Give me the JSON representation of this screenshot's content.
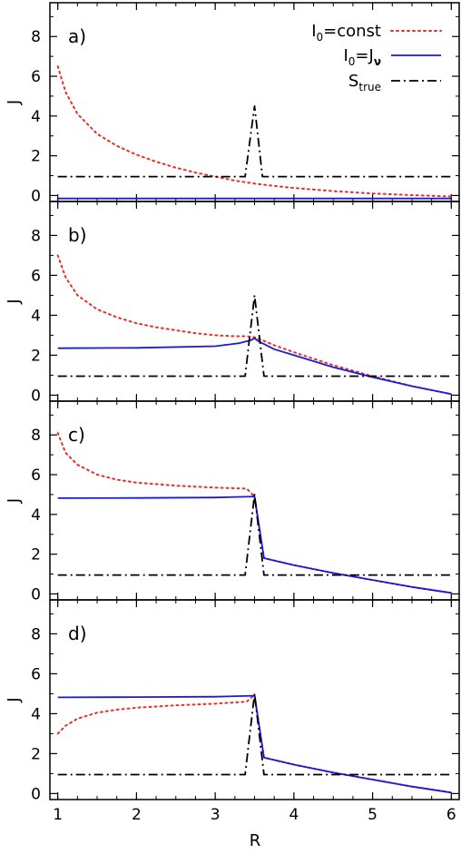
{
  "chart_data": {
    "type": "line",
    "xlabel": "R",
    "ylabel": "J",
    "xlim": [
      0.9,
      6.1
    ],
    "ylim": [
      -0.3,
      9.7
    ],
    "xticks": [
      1,
      2,
      3,
      4,
      5,
      6
    ],
    "yticks": [
      0,
      2,
      4,
      6,
      8
    ],
    "legend": {
      "placement": "top-right",
      "entries": [
        {
          "base": "I",
          "sub": "0",
          "rest": "=const",
          "color": "#e8302a",
          "dash": "dotted"
        },
        {
          "base": "I",
          "sub": "0",
          "rest": "=J",
          "greek": "ν",
          "color": "#1a1ad6",
          "dash": "solid"
        },
        {
          "base": "S",
          "sub": "true",
          "rest": "",
          "color": "#000000",
          "dash": "dashdot"
        }
      ]
    },
    "panels": [
      {
        "label": "a)",
        "series": [
          {
            "key": "I0const",
            "color": "#e8302a",
            "dash": "dotted",
            "x": [
              1.0,
              1.1,
              1.25,
              1.5,
              1.75,
              2.0,
              2.25,
              2.5,
              2.75,
              3.0,
              3.25,
              3.5,
              3.75,
              4.0,
              4.5,
              5.0,
              5.5,
              6.0
            ],
            "y": [
              6.5,
              5.2,
              4.1,
              3.1,
              2.5,
              2.05,
              1.7,
              1.4,
              1.15,
              0.95,
              0.75,
              0.6,
              0.48,
              0.38,
              0.22,
              0.1,
              0.02,
              -0.05
            ]
          },
          {
            "key": "I0Jnu",
            "color": "#1a1ad6",
            "dash": "solid",
            "x": [
              1.0,
              6.0
            ],
            "y": [
              -0.15,
              -0.15
            ]
          },
          {
            "key": "Strue",
            "color": "#000000",
            "dash": "dashdot",
            "x": [
              1.0,
              3.38,
              3.5,
              3.6,
              6.0
            ],
            "y": [
              0.95,
              0.95,
              4.5,
              0.95,
              0.95
            ]
          }
        ]
      },
      {
        "label": "b)",
        "series": [
          {
            "key": "I0const",
            "color": "#e8302a",
            "dash": "dotted",
            "x": [
              1.0,
              1.1,
              1.25,
              1.5,
              1.75,
              2.0,
              2.25,
              2.5,
              2.75,
              3.0,
              3.25,
              3.4,
              3.5,
              3.6,
              3.75,
              4.0,
              4.5,
              5.0,
              5.5,
              6.0
            ],
            "y": [
              7.0,
              5.9,
              5.0,
              4.3,
              3.9,
              3.6,
              3.4,
              3.25,
              3.1,
              3.0,
              2.95,
              2.95,
              2.9,
              2.75,
              2.5,
              2.15,
              1.5,
              0.95,
              0.45,
              0.05
            ]
          },
          {
            "key": "I0Jnu",
            "color": "#1a1ad6",
            "dash": "solid",
            "x": [
              1.0,
              2.0,
              3.0,
              3.3,
              3.45,
              3.5,
              3.55,
              3.75,
              4.0,
              4.5,
              5.0,
              5.5,
              6.0
            ],
            "y": [
              2.35,
              2.37,
              2.45,
              2.6,
              2.75,
              2.85,
              2.7,
              2.3,
              2.0,
              1.4,
              0.9,
              0.45,
              0.05
            ]
          },
          {
            "key": "Strue",
            "color": "#000000",
            "dash": "dashdot",
            "x": [
              1.0,
              3.38,
              3.5,
              3.62,
              6.0
            ],
            "y": [
              0.95,
              0.95,
              5.0,
              0.95,
              0.95
            ]
          }
        ]
      },
      {
        "label": "c)",
        "series": [
          {
            "key": "I0const",
            "color": "#e8302a",
            "dash": "dotted",
            "x": [
              1.0,
              1.1,
              1.25,
              1.5,
              1.75,
              2.0,
              2.5,
              3.0,
              3.4,
              3.5,
              3.62,
              4.0,
              4.5,
              5.0,
              5.5,
              6.0
            ],
            "y": [
              8.1,
              7.1,
              6.5,
              6.0,
              5.75,
              5.6,
              5.45,
              5.35,
              5.3,
              4.9,
              1.8,
              1.45,
              1.05,
              0.7,
              0.35,
              0.05
            ]
          },
          {
            "key": "I0Jnu",
            "color": "#1a1ad6",
            "dash": "solid",
            "x": [
              1.0,
              2.0,
              3.0,
              3.5,
              3.62,
              4.0,
              4.5,
              5.0,
              5.5,
              6.0
            ],
            "y": [
              4.82,
              4.83,
              4.85,
              4.9,
              1.8,
              1.45,
              1.05,
              0.7,
              0.35,
              0.05
            ]
          },
          {
            "key": "Strue",
            "color": "#000000",
            "dash": "dashdot",
            "x": [
              1.0,
              3.38,
              3.5,
              3.62,
              6.0
            ],
            "y": [
              0.95,
              0.95,
              5.0,
              0.95,
              0.95
            ]
          }
        ]
      },
      {
        "label": "d)",
        "series": [
          {
            "key": "I0const",
            "color": "#e8302a",
            "dash": "dotted",
            "x": [
              1.0,
              1.1,
              1.25,
              1.5,
              1.75,
              2.0,
              2.5,
              3.0,
              3.4,
              3.5,
              3.62,
              4.0,
              4.5,
              5.0,
              5.5,
              6.0
            ],
            "y": [
              3.0,
              3.4,
              3.75,
              4.05,
              4.2,
              4.3,
              4.42,
              4.5,
              4.6,
              4.95,
              1.8,
              1.45,
              1.05,
              0.7,
              0.35,
              0.05
            ]
          },
          {
            "key": "I0Jnu",
            "color": "#1a1ad6",
            "dash": "solid",
            "x": [
              1.0,
              2.0,
              3.0,
              3.5,
              3.62,
              4.0,
              4.5,
              5.0,
              5.5,
              6.0
            ],
            "y": [
              4.82,
              4.83,
              4.85,
              4.9,
              1.8,
              1.45,
              1.05,
              0.7,
              0.35,
              0.05
            ]
          },
          {
            "key": "Strue",
            "color": "#000000",
            "dash": "dashdot",
            "x": [
              1.0,
              3.38,
              3.5,
              3.62,
              6.0
            ],
            "y": [
              0.95,
              0.95,
              5.0,
              0.95,
              0.95
            ]
          }
        ]
      }
    ]
  }
}
